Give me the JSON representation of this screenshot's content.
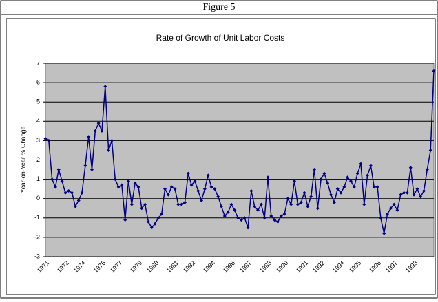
{
  "figure_caption": "Figure 5",
  "chart_data": {
    "type": "line",
    "title": "Rate of Growth of Unit Labor Costs",
    "y_label": "Year-on-Year % Change",
    "categories": [
      "1971",
      null,
      null,
      null,
      null,
      null,
      "1972",
      null,
      null,
      null,
      null,
      "1974",
      null,
      null,
      null,
      null,
      null,
      "1976",
      null,
      null,
      null,
      null,
      "1977",
      null,
      null,
      null,
      null,
      null,
      "1979",
      null,
      null,
      null,
      null,
      "1980",
      null,
      null,
      null,
      null,
      null,
      "1981",
      null,
      null,
      null,
      null,
      "1982",
      null,
      null,
      null,
      null,
      null,
      "1984",
      null,
      null,
      null,
      null,
      null,
      "1986",
      null,
      null,
      null,
      null,
      "1987",
      null,
      null,
      null,
      null,
      null,
      "1988",
      null,
      null,
      null,
      null,
      "1990",
      null,
      null,
      null,
      null,
      null,
      "1991",
      null,
      null,
      null,
      null,
      "1992",
      null,
      null,
      null,
      null,
      null,
      "1994",
      null,
      null,
      null,
      null,
      "1995",
      null,
      null,
      null,
      null,
      null,
      "1996",
      null,
      null,
      null,
      null,
      "1997",
      null,
      null,
      null,
      null,
      null,
      "1998",
      null,
      null,
      null,
      null,
      null,
      null
    ],
    "series": [
      {
        "name": "Unit Labor Costs",
        "color": "#000080",
        "values": [
          3.1,
          3.0,
          1.0,
          0.6,
          1.5,
          0.9,
          0.3,
          0.4,
          0.3,
          -0.4,
          -0.1,
          0.3,
          1.7,
          3.2,
          1.5,
          3.5,
          3.9,
          3.5,
          5.8,
          2.5,
          3.0,
          1.0,
          0.6,
          0.7,
          -1.1,
          0.9,
          -0.3,
          0.8,
          0.6,
          -0.5,
          -0.3,
          -1.2,
          -1.5,
          -1.3,
          -1.0,
          -0.8,
          0.5,
          0.2,
          0.6,
          0.5,
          -0.3,
          -0.3,
          -0.2,
          1.3,
          0.7,
          0.9,
          0.4,
          -0.1,
          0.5,
          1.2,
          0.6,
          0.5,
          0.1,
          -0.4,
          -0.9,
          -0.7,
          -0.3,
          -0.6,
          -1.0,
          -1.1,
          -1.0,
          -1.5,
          0.4,
          -0.4,
          -0.6,
          -0.3,
          -1.0,
          1.1,
          -0.9,
          -1.1,
          -1.2,
          -0.9,
          -0.8,
          0.0,
          -0.3,
          0.9,
          -0.3,
          -0.2,
          0.3,
          -0.4,
          0.1,
          1.5,
          -0.5,
          1.0,
          1.3,
          0.8,
          0.2,
          -0.2,
          0.5,
          0.3,
          0.6,
          1.1,
          0.9,
          0.6,
          1.3,
          1.8,
          -0.3,
          1.2,
          1.7,
          0.6,
          0.6,
          -1.0,
          -1.8,
          -0.8,
          -0.5,
          -0.3,
          -0.6,
          0.2,
          0.3,
          0.3,
          1.6,
          0.2,
          0.5,
          0.1,
          0.4,
          1.5,
          2.5,
          6.6
        ]
      }
    ],
    "ylim": [
      -3,
      7
    ],
    "yticks": [
      -3,
      -2,
      -1,
      0,
      1,
      2,
      3,
      4,
      5,
      6,
      7
    ],
    "grid": true,
    "plot_background": "#c0c0c0"
  }
}
